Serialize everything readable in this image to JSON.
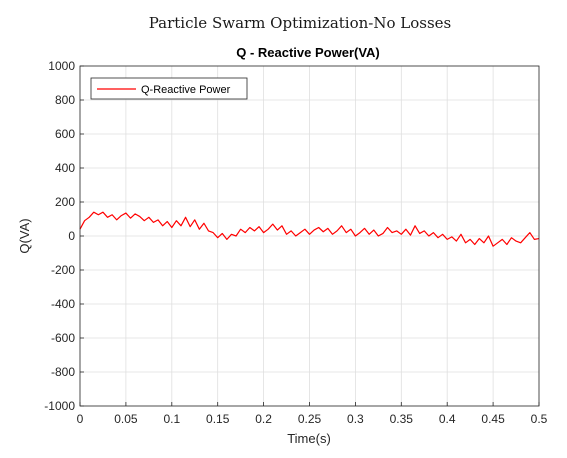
{
  "figure": {
    "suptitle": "Particle Swarm Optimization-No Losses"
  },
  "chart_data": {
    "type": "line",
    "title": "Q - Reactive Power(VA)",
    "xlabel": "Time(s)",
    "ylabel": "Q(VA)",
    "xlim": [
      0,
      0.5
    ],
    "ylim": [
      -1000,
      1000
    ],
    "xticks": [
      "0",
      "0.05",
      "0.1",
      "0.15",
      "0.2",
      "0.25",
      "0.3",
      "0.35",
      "0.4",
      "0.45",
      "0.5"
    ],
    "yticks": [
      "-1000",
      "-800",
      "-600",
      "-400",
      "-200",
      "0",
      "200",
      "400",
      "600",
      "800",
      "1000"
    ],
    "grid": true,
    "legend_position": "top-left",
    "series": [
      {
        "name": "Q-Reactive Power",
        "color": "#ff0000",
        "x": [
          0,
          0.005,
          0.01,
          0.015,
          0.02,
          0.025,
          0.03,
          0.035,
          0.04,
          0.045,
          0.05,
          0.055,
          0.06,
          0.065,
          0.07,
          0.075,
          0.08,
          0.085,
          0.09,
          0.095,
          0.1,
          0.105,
          0.11,
          0.115,
          0.12,
          0.125,
          0.13,
          0.135,
          0.14,
          0.145,
          0.15,
          0.155,
          0.16,
          0.165,
          0.17,
          0.175,
          0.18,
          0.185,
          0.19,
          0.195,
          0.2,
          0.205,
          0.21,
          0.215,
          0.22,
          0.225,
          0.23,
          0.235,
          0.24,
          0.245,
          0.25,
          0.255,
          0.26,
          0.265,
          0.27,
          0.275,
          0.28,
          0.285,
          0.29,
          0.295,
          0.3,
          0.305,
          0.31,
          0.315,
          0.32,
          0.325,
          0.33,
          0.335,
          0.34,
          0.345,
          0.35,
          0.355,
          0.36,
          0.365,
          0.37,
          0.375,
          0.38,
          0.385,
          0.39,
          0.395,
          0.4,
          0.405,
          0.41,
          0.415,
          0.42,
          0.425,
          0.43,
          0.435,
          0.44,
          0.445,
          0.45,
          0.455,
          0.46,
          0.465,
          0.47,
          0.475,
          0.48,
          0.485,
          0.49,
          0.495,
          0.5
        ],
        "y": [
          40,
          90,
          110,
          140,
          125,
          140,
          110,
          125,
          95,
          120,
          135,
          105,
          130,
          115,
          90,
          110,
          80,
          95,
          60,
          85,
          50,
          90,
          60,
          110,
          55,
          95,
          40,
          75,
          30,
          20,
          -10,
          15,
          -20,
          10,
          0,
          40,
          20,
          50,
          30,
          55,
          20,
          40,
          70,
          35,
          60,
          10,
          30,
          0,
          20,
          40,
          10,
          35,
          50,
          25,
          45,
          10,
          30,
          60,
          20,
          40,
          0,
          20,
          45,
          10,
          35,
          0,
          15,
          50,
          20,
          30,
          10,
          40,
          5,
          60,
          15,
          30,
          0,
          20,
          -10,
          10,
          -20,
          -5,
          -30,
          10,
          -40,
          -20,
          -50,
          -15,
          -40,
          0,
          -60,
          -40,
          -20,
          -50,
          -10,
          -30,
          -40,
          -10,
          20,
          -20,
          -15
        ]
      }
    ]
  }
}
